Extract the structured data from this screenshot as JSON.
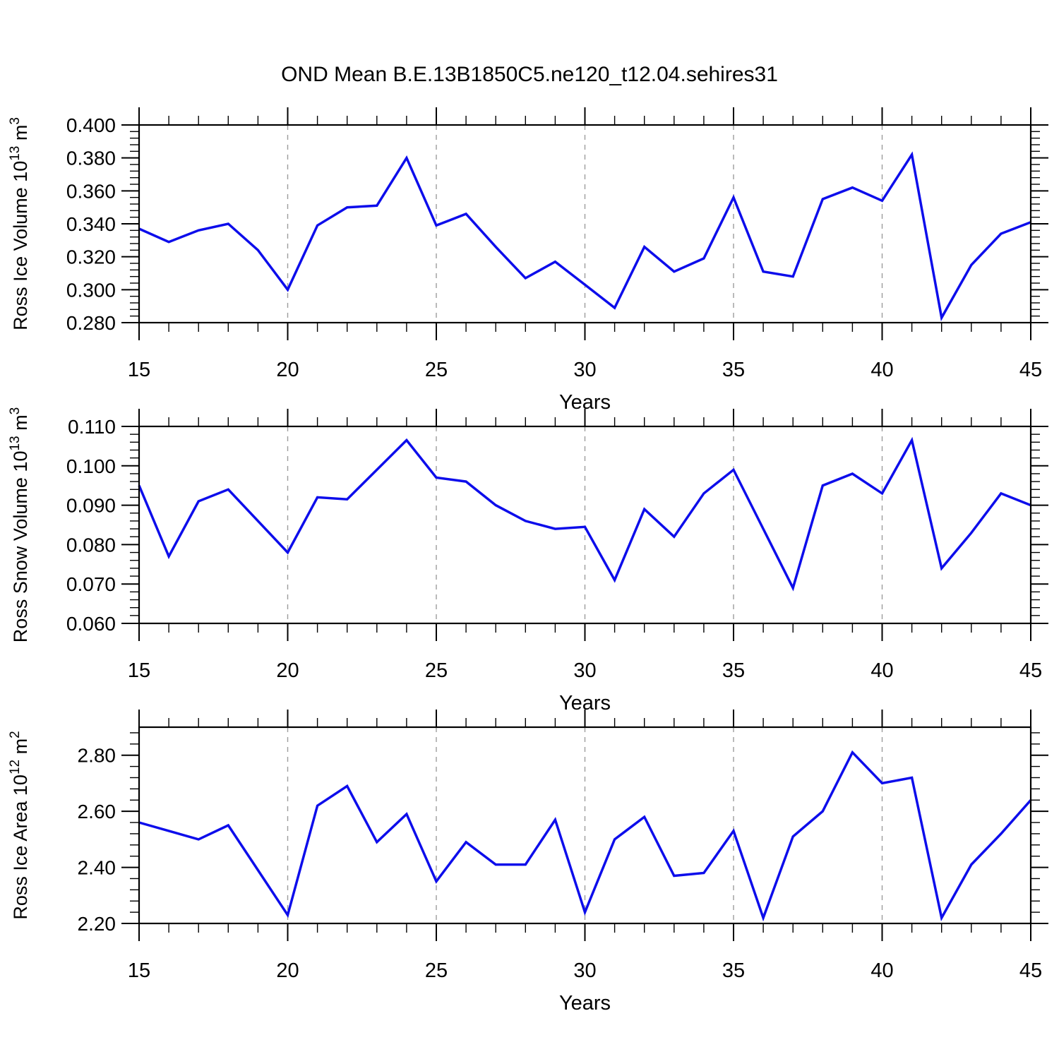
{
  "title": "OND Mean B.E.13B1850C5.ne120_t12.04.sehires31",
  "colors": {
    "line": "#0d0deb",
    "grid": "#9c9c9c",
    "axis": "#000000",
    "text": "#000000",
    "background": "#ffffff"
  },
  "chart_data": [
    {
      "type": "line",
      "ylabel": "Ross Ice Volume 10^13 m^3",
      "ylabel_segments": [
        {
          "text": "Ross Ice Volume 10"
        },
        {
          "text": "13",
          "sup": true
        },
        {
          "text": " m"
        },
        {
          "text": "3",
          "sup": true
        }
      ],
      "xlabel": "Years",
      "x": [
        15,
        16,
        17,
        18,
        19,
        20,
        21,
        22,
        23,
        24,
        25,
        26,
        27,
        28,
        29,
        30,
        31,
        32,
        33,
        34,
        35,
        36,
        37,
        38,
        39,
        40,
        41,
        42,
        43,
        44,
        45
      ],
      "values": [
        0.337,
        0.329,
        0.336,
        0.34,
        0.324,
        0.3,
        0.339,
        0.35,
        0.351,
        0.38,
        0.339,
        0.346,
        0.326,
        0.307,
        0.317,
        0.303,
        0.289,
        0.326,
        0.311,
        0.319,
        0.356,
        0.311,
        0.308,
        0.355,
        0.362,
        0.354,
        0.382,
        0.283,
        0.315,
        0.334,
        0.341
      ],
      "xlim": [
        15,
        45
      ],
      "ylim": [
        0.28,
        0.4
      ],
      "xticks": [
        15,
        20,
        25,
        30,
        35,
        40,
        45
      ],
      "xtick_labels": [
        "15",
        "20",
        "25",
        "30",
        "35",
        "40",
        "45"
      ],
      "yticks": [
        0.28,
        0.3,
        0.32,
        0.34,
        0.36,
        0.38,
        0.4
      ],
      "ytick_labels": [
        "0.280",
        "0.300",
        "0.320",
        "0.340",
        "0.360",
        "0.380",
        "0.400"
      ],
      "y_minor_step": 0.004,
      "x_minor_step": 1,
      "grid_x": [
        20,
        25,
        30,
        35,
        40
      ]
    },
    {
      "type": "line",
      "ylabel": "Ross Snow Volume 10^13 m^3",
      "ylabel_segments": [
        {
          "text": "Ross Snow Volume 10"
        },
        {
          "text": "13",
          "sup": true
        },
        {
          "text": " m"
        },
        {
          "text": "3",
          "sup": true
        }
      ],
      "xlabel": "Years",
      "x": [
        15,
        16,
        17,
        18,
        19,
        20,
        21,
        22,
        23,
        24,
        25,
        26,
        27,
        28,
        29,
        30,
        31,
        32,
        33,
        34,
        35,
        36,
        37,
        38,
        39,
        40,
        41,
        42,
        43,
        44,
        45
      ],
      "values": [
        0.095,
        0.077,
        0.091,
        0.094,
        0.086,
        0.078,
        0.092,
        0.0915,
        0.099,
        0.1065,
        0.097,
        0.096,
        0.09,
        0.086,
        0.084,
        0.0845,
        0.071,
        0.089,
        0.082,
        0.093,
        0.099,
        0.084,
        0.069,
        0.095,
        0.098,
        0.093,
        0.1065,
        0.074,
        0.083,
        0.093,
        0.09
      ],
      "xlim": [
        15,
        45
      ],
      "ylim": [
        0.06,
        0.11
      ],
      "xticks": [
        15,
        20,
        25,
        30,
        35,
        40,
        45
      ],
      "xtick_labels": [
        "15",
        "20",
        "25",
        "30",
        "35",
        "40",
        "45"
      ],
      "yticks": [
        0.06,
        0.07,
        0.08,
        0.09,
        0.1,
        0.11
      ],
      "ytick_labels": [
        "0.060",
        "0.070",
        "0.080",
        "0.090",
        "0.100",
        "0.110"
      ],
      "y_minor_step": 0.002,
      "x_minor_step": 1,
      "grid_x": [
        20,
        25,
        30,
        35,
        40
      ]
    },
    {
      "type": "line",
      "ylabel": "Ross Ice Area 10^12 m^2",
      "ylabel_segments": [
        {
          "text": "Ross Ice Area 10"
        },
        {
          "text": "12",
          "sup": true
        },
        {
          "text": " m"
        },
        {
          "text": "2",
          "sup": true
        }
      ],
      "xlabel": "Years",
      "x": [
        15,
        16,
        17,
        18,
        19,
        20,
        21,
        22,
        23,
        24,
        25,
        26,
        27,
        28,
        29,
        30,
        31,
        32,
        33,
        34,
        35,
        36,
        37,
        38,
        39,
        40,
        41,
        42,
        43,
        44,
        45
      ],
      "values": [
        2.56,
        2.53,
        2.5,
        2.55,
        2.39,
        2.23,
        2.62,
        2.69,
        2.49,
        2.59,
        2.35,
        2.49,
        2.41,
        2.41,
        2.57,
        2.24,
        2.5,
        2.58,
        2.37,
        2.38,
        2.53,
        2.22,
        2.51,
        2.6,
        2.81,
        2.7,
        2.72,
        2.22,
        2.41,
        2.52,
        2.64
      ],
      "xlim": [
        15,
        45
      ],
      "ylim": [
        2.2,
        2.9
      ],
      "xticks": [
        15,
        20,
        25,
        30,
        35,
        40,
        45
      ],
      "xtick_labels": [
        "15",
        "20",
        "25",
        "30",
        "35",
        "40",
        "45"
      ],
      "yticks": [
        2.2,
        2.4,
        2.6,
        2.8
      ],
      "ytick_labels": [
        "2.20",
        "2.40",
        "2.60",
        "2.80"
      ],
      "y_minor_step": 0.04,
      "x_minor_step": 1,
      "grid_x": [
        20,
        25,
        30,
        35,
        40
      ]
    }
  ]
}
